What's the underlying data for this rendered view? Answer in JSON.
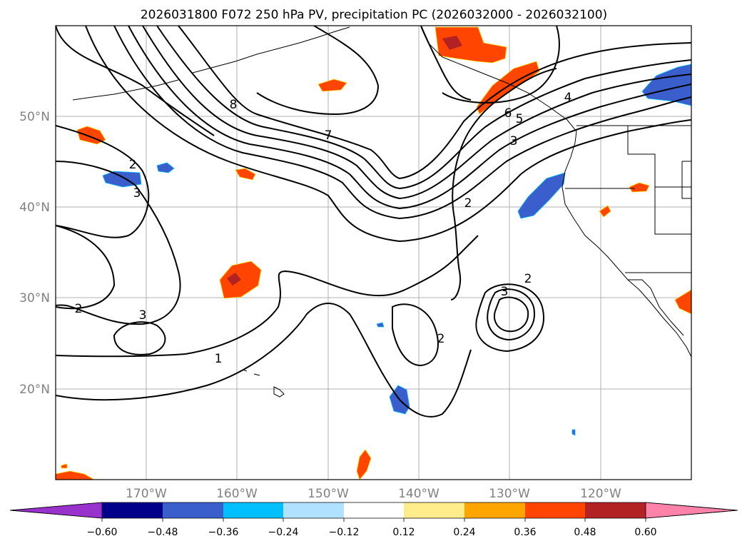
{
  "title": "2026031800 F072 250 hPa PV, precipitation PC (2026032000 - 2026032100)",
  "map": {
    "projection": "PlateCarree",
    "lon_range": [
      -180,
      -110
    ],
    "lat_range": [
      10,
      60
    ],
    "lat_labels": [
      {
        "value": 50,
        "text": "50°N"
      },
      {
        "value": 40,
        "text": "40°N"
      },
      {
        "value": 30,
        "text": "30°N"
      },
      {
        "value": 20,
        "text": "20°N"
      }
    ],
    "lon_labels": [
      {
        "value": -170,
        "text": "170°W"
      },
      {
        "value": -160,
        "text": "160°W"
      },
      {
        "value": -150,
        "text": "150°W"
      },
      {
        "value": -140,
        "text": "140°W"
      },
      {
        "value": -130,
        "text": "130°W"
      },
      {
        "value": -120,
        "text": "120°W"
      }
    ],
    "gridlines": true,
    "contour_labels": [
      "8",
      "7",
      "6",
      "5",
      "4",
      "3",
      "2",
      "2",
      "3",
      "1",
      "2",
      "3",
      "2",
      "3",
      "2",
      "2"
    ]
  },
  "colorbar": {
    "extend": "both",
    "ticks": [
      "−0.60",
      "−0.48",
      "−0.36",
      "−0.24",
      "−0.12",
      "0.12",
      "0.24",
      "0.36",
      "0.48",
      "0.60"
    ],
    "colors": [
      "#9932cc",
      "#00008b",
      "#3a5fcd",
      "#00bfff",
      "#b0e2ff",
      "#ffffff",
      "#ffec8b",
      "#ffa500",
      "#ff4500",
      "#b22222",
      "#ff82ab"
    ]
  }
}
